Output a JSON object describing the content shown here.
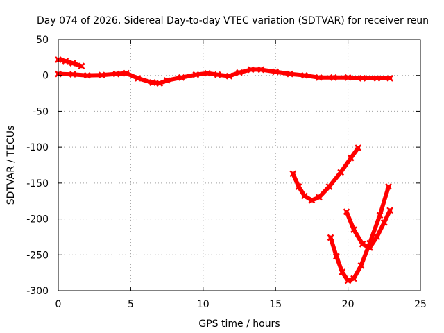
{
  "chart_data": {
    "type": "scatter",
    "title": "Day 074 of 2026, Sidereal Day-to-day VTEC variation (SDTVAR) for receiver reun",
    "xlabel": "GPS time / hours",
    "ylabel": "SDTVAR / TECUs",
    "xlim": [
      0,
      25
    ],
    "ylim": [
      -300,
      50
    ],
    "x_ticks": [
      "0",
      "5",
      "10",
      "15",
      "20",
      "25"
    ],
    "y_ticks": [
      "50",
      "0",
      "-50",
      "-100",
      "-150",
      "-200",
      "-250",
      "-300"
    ],
    "grid": true,
    "legend": "none",
    "color": "#ff0000",
    "series": [
      {
        "points": [
          [
            0,
            2
          ],
          [
            1,
            1.5
          ],
          [
            2,
            0
          ],
          [
            3,
            0.5
          ],
          [
            4,
            2
          ],
          [
            4.7,
            3
          ],
          [
            5.5,
            -4
          ],
          [
            6.5,
            -10
          ],
          [
            7,
            -11
          ],
          [
            7.5,
            -7
          ],
          [
            8.5,
            -3
          ],
          [
            9.5,
            1
          ],
          [
            10.3,
            3
          ],
          [
            11,
            1
          ],
          [
            11.8,
            -1
          ],
          [
            12.5,
            4
          ],
          [
            13.3,
            8
          ],
          [
            14,
            8
          ],
          [
            15,
            5
          ],
          [
            16,
            2
          ],
          [
            17,
            0
          ],
          [
            18,
            -3
          ],
          [
            19,
            -3
          ],
          [
            20,
            -3
          ],
          [
            21,
            -4
          ],
          [
            22,
            -4
          ],
          [
            22.9,
            -4
          ]
        ]
      },
      {
        "points": [
          [
            0,
            22
          ],
          [
            0.5,
            20
          ],
          [
            1,
            17
          ],
          [
            1.6,
            13
          ]
        ]
      },
      {
        "points": [
          [
            16.2,
            -137
          ],
          [
            16.6,
            -155
          ],
          [
            17,
            -168
          ],
          [
            17.5,
            -174
          ],
          [
            18,
            -170
          ],
          [
            18.7,
            -155
          ],
          [
            19.5,
            -135
          ],
          [
            20.2,
            -115
          ],
          [
            20.7,
            -101
          ]
        ]
      },
      {
        "points": [
          [
            18.8,
            -226
          ],
          [
            19.2,
            -252
          ],
          [
            19.6,
            -274
          ],
          [
            20,
            -286
          ],
          [
            20.4,
            -283
          ],
          [
            20.9,
            -265
          ],
          [
            21.5,
            -234
          ],
          [
            22.2,
            -195
          ],
          [
            22.8,
            -155
          ]
        ]
      },
      {
        "points": [
          [
            19.9,
            -190
          ],
          [
            20.4,
            -215
          ],
          [
            21,
            -235
          ],
          [
            21.5,
            -240
          ],
          [
            22,
            -225
          ],
          [
            22.5,
            -205
          ],
          [
            22.9,
            -188
          ]
        ]
      }
    ]
  }
}
